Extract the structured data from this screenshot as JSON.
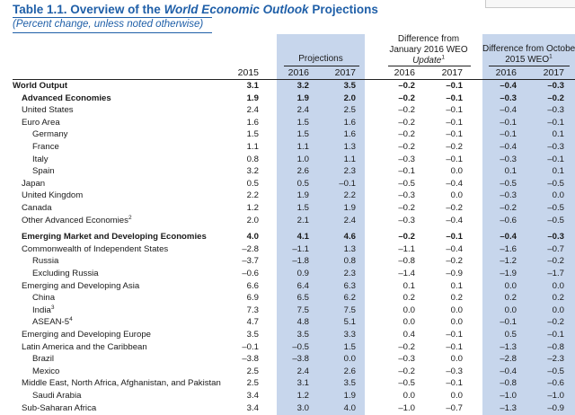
{
  "header": {
    "title_prefix": "Table 1.1. Overview of the ",
    "title_italic": "World Economic Outlook",
    "title_suffix": " Projections",
    "subtitle": "(Percent change, unless noted otherwise)"
  },
  "columns": {
    "projections": "Projections",
    "diff_jan_line1": "Difference from",
    "diff_jan_line2": "January 2016 WEO",
    "diff_jan_line3": "Update",
    "diff_jan_sup": "1",
    "diff_oct_line1": "Difference from October",
    "diff_oct_line2": "2015 WEO",
    "diff_oct_sup": "1",
    "years": [
      "2015",
      "2016",
      "2017",
      "2016",
      "2017",
      "2016",
      "2017"
    ]
  },
  "rows": [
    {
      "label": "World Output",
      "sup": "",
      "level": 0,
      "bold": true,
      "values": [
        "3.1",
        "3.2",
        "3.5",
        "–0.2",
        "–0.1",
        "–0.4",
        "–0.3"
      ]
    },
    {
      "label": "Advanced Economies",
      "sup": "",
      "level": 1,
      "bold": true,
      "values": [
        "1.9",
        "1.9",
        "2.0",
        "–0.2",
        "–0.1",
        "–0.3",
        "–0.2"
      ]
    },
    {
      "label": "United States",
      "sup": "",
      "level": 1,
      "bold": false,
      "values": [
        "2.4",
        "2.4",
        "2.5",
        "–0.2",
        "–0.1",
        "–0.4",
        "–0.3"
      ]
    },
    {
      "label": "Euro Area",
      "sup": "",
      "level": 1,
      "bold": false,
      "values": [
        "1.6",
        "1.5",
        "1.6",
        "–0.2",
        "–0.1",
        "–0.1",
        "–0.1"
      ]
    },
    {
      "label": "Germany",
      "sup": "",
      "level": 2,
      "bold": false,
      "values": [
        "1.5",
        "1.5",
        "1.6",
        "–0.2",
        "–0.1",
        "–0.1",
        "0.1"
      ]
    },
    {
      "label": "France",
      "sup": "",
      "level": 2,
      "bold": false,
      "values": [
        "1.1",
        "1.1",
        "1.3",
        "–0.2",
        "–0.2",
        "–0.4",
        "–0.3"
      ]
    },
    {
      "label": "Italy",
      "sup": "",
      "level": 2,
      "bold": false,
      "values": [
        "0.8",
        "1.0",
        "1.1",
        "–0.3",
        "–0.1",
        "–0.3",
        "–0.1"
      ]
    },
    {
      "label": "Spain",
      "sup": "",
      "level": 2,
      "bold": false,
      "values": [
        "3.2",
        "2.6",
        "2.3",
        "–0.1",
        "0.0",
        "0.1",
        "0.1"
      ]
    },
    {
      "label": "Japan",
      "sup": "",
      "level": 1,
      "bold": false,
      "values": [
        "0.5",
        "0.5",
        "–0.1",
        "–0.5",
        "–0.4",
        "–0.5",
        "–0.5"
      ]
    },
    {
      "label": "United Kingdom",
      "sup": "",
      "level": 1,
      "bold": false,
      "values": [
        "2.2",
        "1.9",
        "2.2",
        "–0.3",
        "0.0",
        "–0.3",
        "0.0"
      ]
    },
    {
      "label": "Canada",
      "sup": "",
      "level": 1,
      "bold": false,
      "values": [
        "1.2",
        "1.5",
        "1.9",
        "–0.2",
        "–0.2",
        "–0.2",
        "–0.5"
      ]
    },
    {
      "label": "Other Advanced Economies",
      "sup": "2",
      "level": 1,
      "bold": false,
      "values": [
        "2.0",
        "2.1",
        "2.4",
        "–0.3",
        "–0.4",
        "–0.6",
        "–0.5"
      ]
    },
    {
      "spacer": true
    },
    {
      "label": "Emerging Market and Developing Economies",
      "sup": "",
      "level": 1,
      "bold": true,
      "values": [
        "4.0",
        "4.1",
        "4.6",
        "–0.2",
        "–0.1",
        "–0.4",
        "–0.3"
      ]
    },
    {
      "label": "Commonwealth of Independent States",
      "sup": "",
      "level": 1,
      "bold": false,
      "values": [
        "–2.8",
        "–1.1",
        "1.3",
        "–1.1",
        "–0.4",
        "–1.6",
        "–0.7"
      ]
    },
    {
      "label": "Russia",
      "sup": "",
      "level": 2,
      "bold": false,
      "values": [
        "–3.7",
        "–1.8",
        "0.8",
        "–0.8",
        "–0.2",
        "–1.2",
        "–0.2"
      ]
    },
    {
      "label": "Excluding Russia",
      "sup": "",
      "level": 2,
      "bold": false,
      "values": [
        "–0.6",
        "0.9",
        "2.3",
        "–1.4",
        "–0.9",
        "–1.9",
        "–1.7"
      ]
    },
    {
      "label": "Emerging and Developing Asia",
      "sup": "",
      "level": 1,
      "bold": false,
      "values": [
        "6.6",
        "6.4",
        "6.3",
        "0.1",
        "0.1",
        "0.0",
        "0.0"
      ]
    },
    {
      "label": "China",
      "sup": "",
      "level": 2,
      "bold": false,
      "values": [
        "6.9",
        "6.5",
        "6.2",
        "0.2",
        "0.2",
        "0.2",
        "0.2"
      ]
    },
    {
      "label": "India",
      "sup": "3",
      "level": 2,
      "bold": false,
      "values": [
        "7.3",
        "7.5",
        "7.5",
        "0.0",
        "0.0",
        "0.0",
        "0.0"
      ]
    },
    {
      "label": "ASEAN-5",
      "sup": "4",
      "level": 2,
      "bold": false,
      "values": [
        "4.7",
        "4.8",
        "5.1",
        "0.0",
        "0.0",
        "–0.1",
        "–0.2"
      ]
    },
    {
      "label": "Emerging and Developing Europe",
      "sup": "",
      "level": 1,
      "bold": false,
      "values": [
        "3.5",
        "3.5",
        "3.3",
        "0.4",
        "–0.1",
        "0.5",
        "–0.1"
      ]
    },
    {
      "label": "Latin America and the Caribbean",
      "sup": "",
      "level": 1,
      "bold": false,
      "values": [
        "–0.1",
        "–0.5",
        "1.5",
        "–0.2",
        "–0.1",
        "–1.3",
        "–0.8"
      ]
    },
    {
      "label": "Brazil",
      "sup": "",
      "level": 2,
      "bold": false,
      "values": [
        "–3.8",
        "–3.8",
        "0.0",
        "–0.3",
        "0.0",
        "–2.8",
        "–2.3"
      ]
    },
    {
      "label": "Mexico",
      "sup": "",
      "level": 2,
      "bold": false,
      "values": [
        "2.5",
        "2.4",
        "2.6",
        "–0.2",
        "–0.3",
        "–0.4",
        "–0.5"
      ]
    },
    {
      "label": "Middle East, North Africa, Afghanistan, and Pakistan",
      "sup": "",
      "level": 1,
      "bold": false,
      "values": [
        "2.5",
        "3.1",
        "3.5",
        "–0.5",
        "–0.1",
        "–0.8",
        "–0.6"
      ]
    },
    {
      "label": "Saudi Arabia",
      "sup": "",
      "level": 2,
      "bold": false,
      "values": [
        "3.4",
        "1.2",
        "1.9",
        "0.0",
        "0.0",
        "–1.0",
        "–1.0"
      ]
    },
    {
      "label": "Sub-Saharan Africa",
      "sup": "",
      "level": 1,
      "bold": false,
      "values": [
        "3.4",
        "3.0",
        "4.0",
        "–1.0",
        "–0.7",
        "–1.3",
        "–0.9"
      ]
    }
  ]
}
